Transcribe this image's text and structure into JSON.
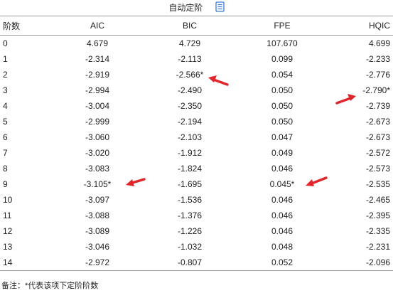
{
  "title": "自动定阶",
  "icons": {
    "title_icon": "document-icon",
    "marker_icon": "arrow-icon"
  },
  "colors": {
    "text": "#222222",
    "rule": "#9a9a9a",
    "arrow": "#e0262b",
    "icon": "#3a7bd5"
  },
  "table": {
    "headers": [
      "阶数",
      "AIC",
      "BIC",
      "FPE",
      "HQIC"
    ],
    "rows": [
      [
        "0",
        "4.679",
        "4.729",
        "107.670",
        "4.699"
      ],
      [
        "1",
        "-2.314",
        "-2.113",
        "0.099",
        "-2.233"
      ],
      [
        "2",
        "-2.919",
        "-2.566*",
        "0.054",
        "-2.776"
      ],
      [
        "3",
        "-2.994",
        "-2.490",
        "0.050",
        "-2.790*"
      ],
      [
        "4",
        "-3.004",
        "-2.350",
        "0.050",
        "-2.739"
      ],
      [
        "5",
        "-2.999",
        "-2.194",
        "0.050",
        "-2.673"
      ],
      [
        "6",
        "-3.060",
        "-2.103",
        "0.047",
        "-2.673"
      ],
      [
        "7",
        "-3.020",
        "-1.912",
        "0.049",
        "-2.572"
      ],
      [
        "8",
        "-3.083",
        "-1.824",
        "0.046",
        "-2.573"
      ],
      [
        "9",
        "-3.105*",
        "-1.695",
        "0.045*",
        "-2.535"
      ],
      [
        "10",
        "-3.097",
        "-1.536",
        "0.046",
        "-2.465"
      ],
      [
        "11",
        "-3.088",
        "-1.376",
        "0.046",
        "-2.395"
      ],
      [
        "12",
        "-3.089",
        "-1.226",
        "0.046",
        "-2.335"
      ],
      [
        "13",
        "-3.046",
        "-1.032",
        "0.048",
        "-2.231"
      ],
      [
        "14",
        "-2.972",
        "-0.807",
        "0.052",
        "-2.096"
      ]
    ]
  },
  "note": "备注：*代表该项下定阶阶数"
}
